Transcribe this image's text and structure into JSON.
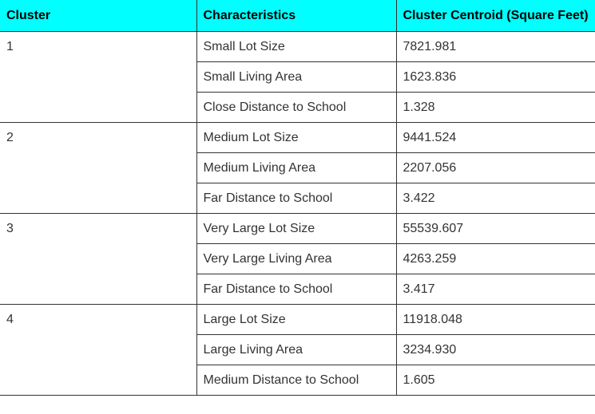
{
  "table": {
    "headers": [
      "Cluster",
      "Characteristics",
      "Cluster Centroid (Square Feet)"
    ],
    "groups": [
      {
        "cluster": "1",
        "rows": [
          {
            "characteristic": "Small Lot Size",
            "centroid": "7821.981"
          },
          {
            "characteristic": "Small Living Area",
            "centroid": "1623.836"
          },
          {
            "characteristic": "Close Distance to School",
            "centroid": "1.328"
          }
        ]
      },
      {
        "cluster": "2",
        "rows": [
          {
            "characteristic": "Medium Lot Size",
            "centroid": "9441.524"
          },
          {
            "characteristic": "Medium Living Area",
            "centroid": "2207.056"
          },
          {
            "characteristic": "Far Distance to School",
            "centroid": "3.422"
          }
        ]
      },
      {
        "cluster": "3",
        "rows": [
          {
            "characteristic": "Very Large Lot Size",
            "centroid": "55539.607"
          },
          {
            "characteristic": "Very Large Living Area",
            "centroid": "4263.259"
          },
          {
            "characteristic": "Far Distance to School",
            "centroid": "3.417"
          }
        ]
      },
      {
        "cluster": "4",
        "rows": [
          {
            "characteristic": "Large Lot Size",
            "centroid": "11918.048"
          },
          {
            "characteristic": "Large Living Area",
            "centroid": "3234.930"
          },
          {
            "characteristic": "Medium Distance to School",
            "centroid": "1.605"
          }
        ]
      }
    ]
  }
}
